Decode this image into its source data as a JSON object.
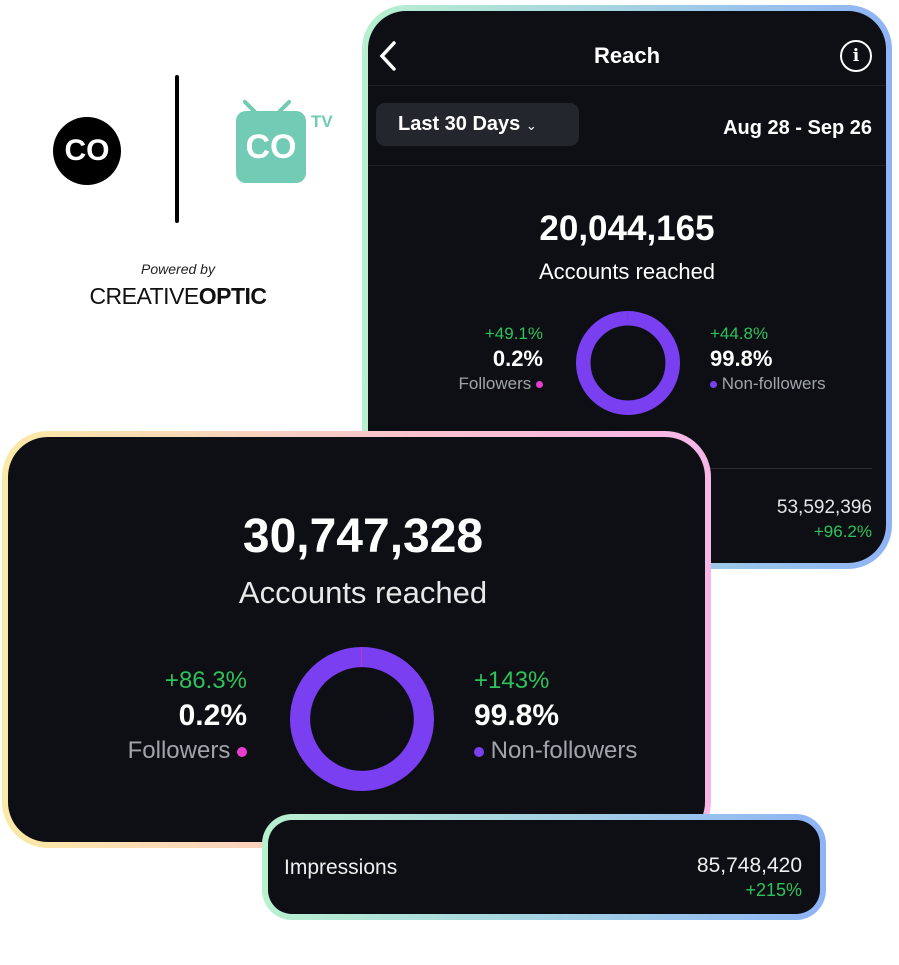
{
  "branding": {
    "logo_text": "CO",
    "tv_logo_text": "CO",
    "tv_label": "TV",
    "powered_by": "Powered by",
    "company_light": "CREATIVE",
    "company_bold": "OPTIC"
  },
  "reach_screen": {
    "title": "Reach",
    "back_icon": "chevron-left-icon",
    "info_icon": "info-icon",
    "period": "Last 30 Days",
    "date_range": "Aug 28 - Sep 26",
    "total": "20,044,165",
    "total_label": "Accounts reached",
    "followers": {
      "change": "+49.1%",
      "percent": "0.2%",
      "label": "Followers",
      "share": 0.002
    },
    "non_followers": {
      "change": "+44.8%",
      "percent": "99.8%",
      "label": "Non-followers",
      "share": 0.998
    },
    "bottom_value": "53,592,396",
    "bottom_change": "+96.2%"
  },
  "reach_card": {
    "total": "30,747,328",
    "total_label": "Accounts reached",
    "followers": {
      "change": "+86.3%",
      "percent": "0.2%",
      "label": "Followers",
      "share": 0.002
    },
    "non_followers": {
      "change": "+143%",
      "percent": "99.8%",
      "label": "Non-followers",
      "share": 0.998
    }
  },
  "impressions_card": {
    "label": "Impressions",
    "value": "85,748,420",
    "change": "+215%"
  },
  "colors": {
    "followers": "#e83ed0",
    "non_followers": "#7b3ff2",
    "positive": "#2fc25b",
    "tv_logo": "#72cbb4"
  }
}
